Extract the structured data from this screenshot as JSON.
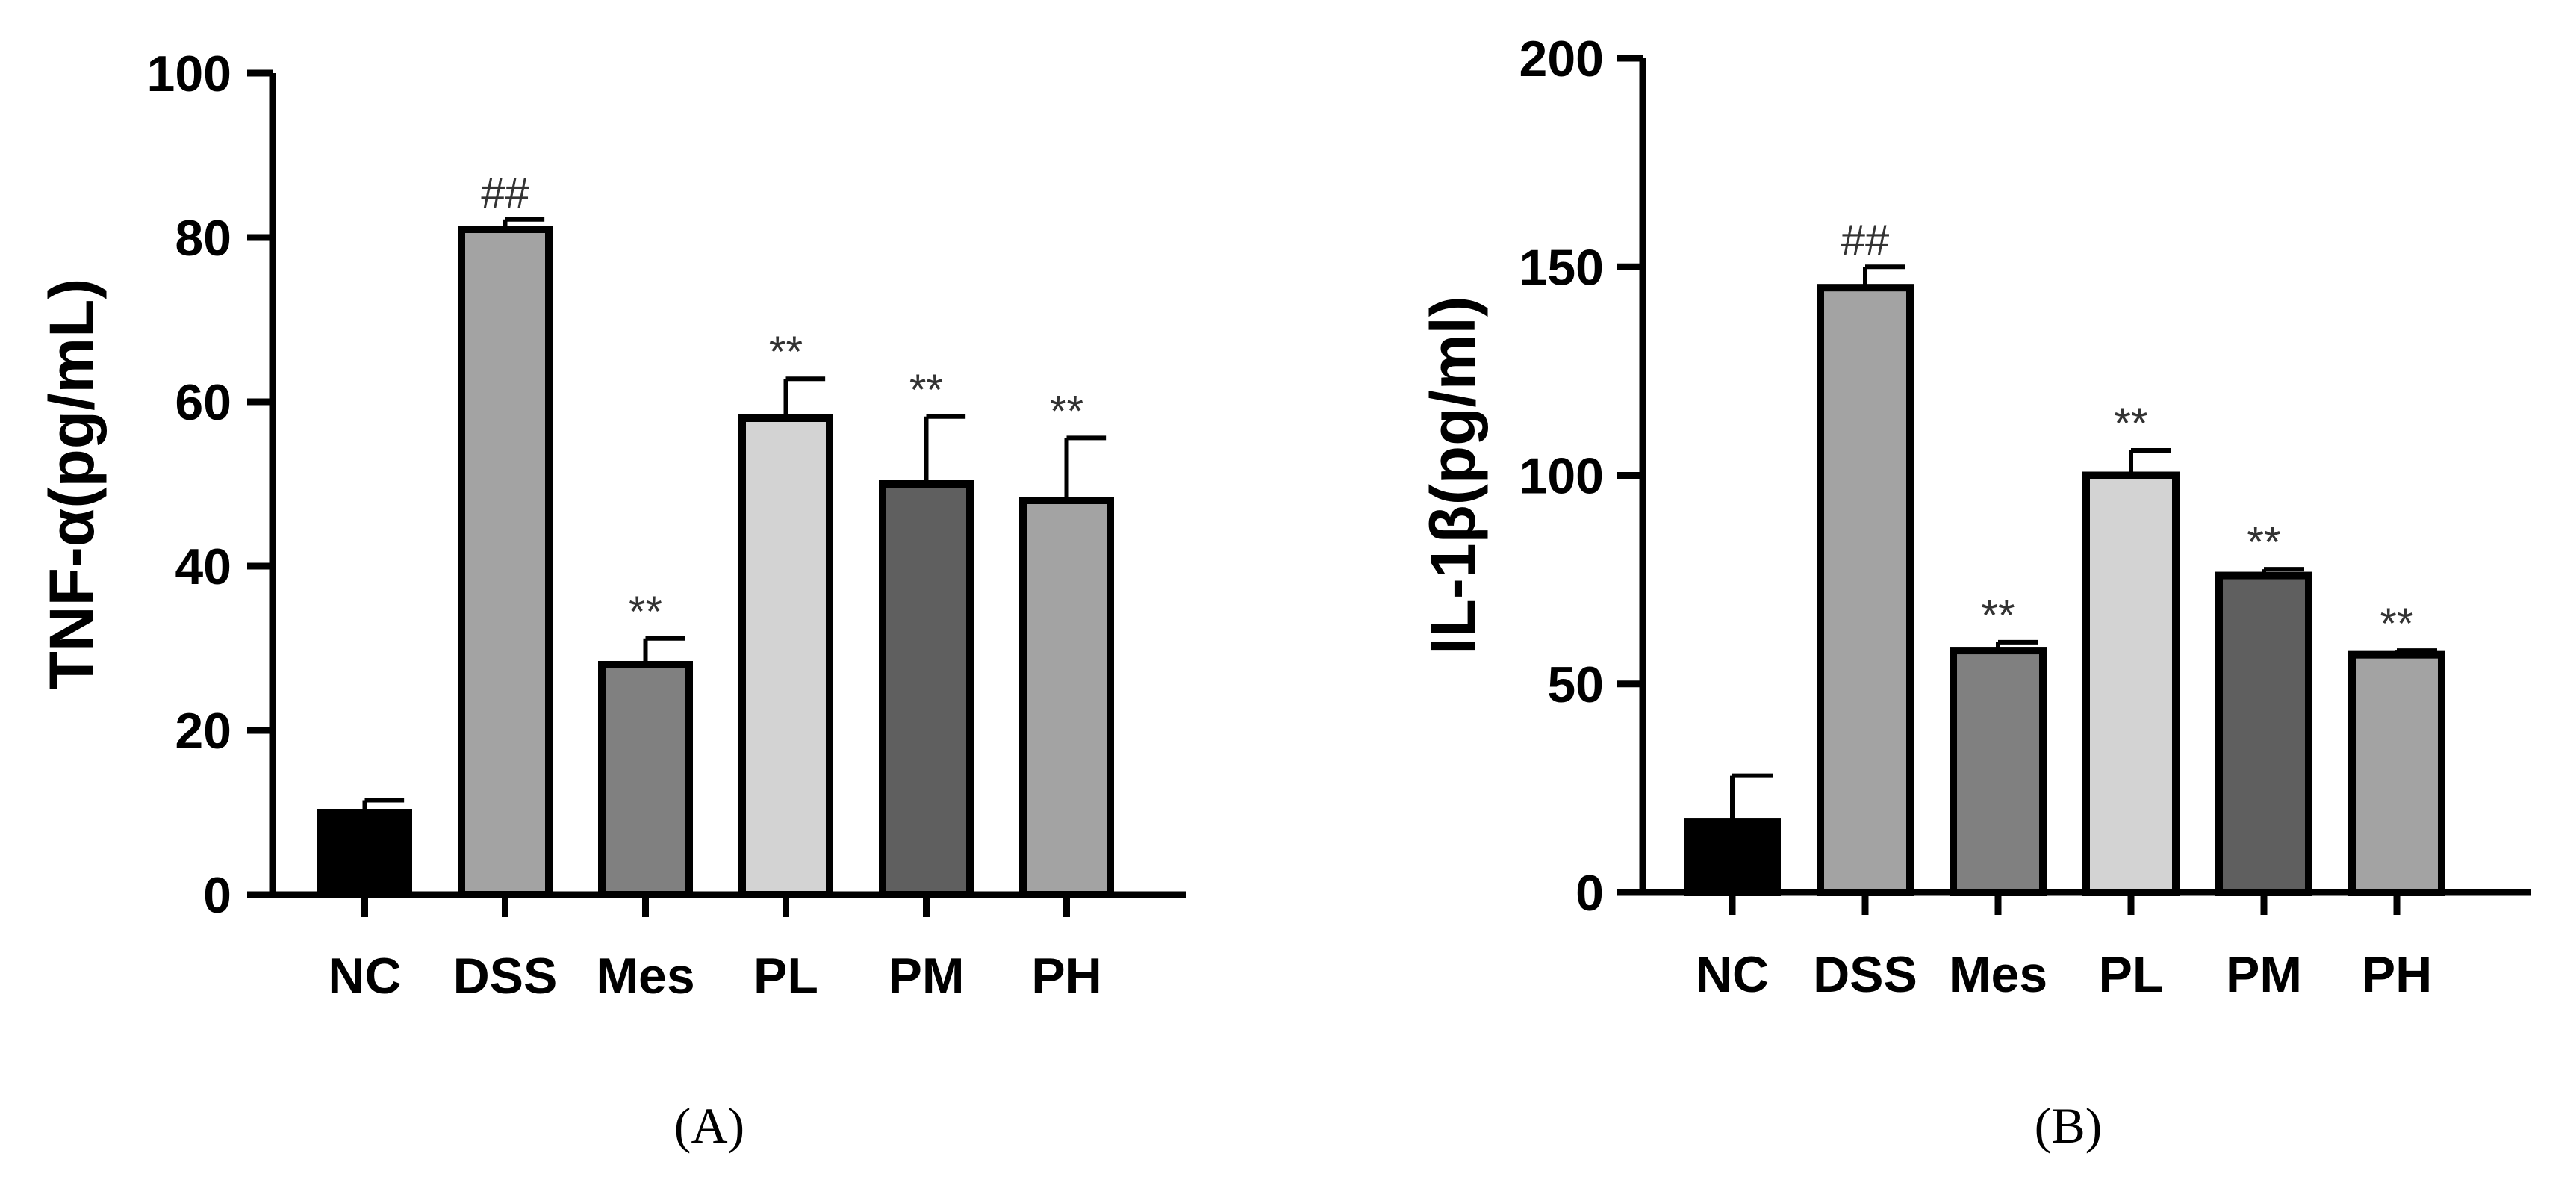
{
  "chart_data": [
    {
      "type": "bar",
      "panel_label": "(A)",
      "ylabel": "TNF-α(pg/mL)",
      "xlabel": "",
      "categories": [
        "NC",
        "DSS",
        "Mes",
        "PL",
        "PM",
        "PH"
      ],
      "values": [
        10,
        81,
        28,
        58,
        50,
        48
      ],
      "error": [
        1.5,
        1.2,
        3.2,
        4.8,
        8.2,
        7.6
      ],
      "significance": [
        "",
        "##",
        "**",
        "**",
        "**",
        "**"
      ],
      "bar_colors": [
        "#000000",
        "#a3a3a3",
        "#808080",
        "#d3d3d3",
        "#5f5f5f",
        "#a3a3a3"
      ],
      "ylim": [
        0,
        100
      ],
      "yticks": [
        0,
        20,
        40,
        60,
        80,
        100
      ],
      "grid": false
    },
    {
      "type": "bar",
      "panel_label": "(B)",
      "ylabel": "IL-1β(pg/ml)",
      "xlabel": "",
      "categories": [
        "NC",
        "DSS",
        "Mes",
        "PL",
        "PM",
        "PH"
      ],
      "values": [
        17,
        145,
        58,
        100,
        76,
        57
      ],
      "error": [
        11,
        5,
        2,
        6,
        1.5,
        1
      ],
      "significance": [
        "",
        "##",
        "**",
        "**",
        "**",
        "**"
      ],
      "bar_colors": [
        "#000000",
        "#a3a3a3",
        "#808080",
        "#d3d3d3",
        "#5f5f5f",
        "#a3a3a3"
      ],
      "ylim": [
        0,
        200
      ],
      "yticks": [
        0,
        50,
        100,
        150,
        200
      ],
      "grid": false
    }
  ]
}
